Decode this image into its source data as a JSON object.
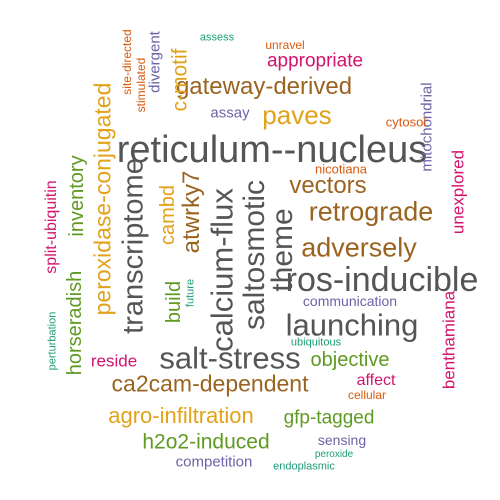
{
  "colors": {
    "gray": "#555555",
    "brown": "#9a6420",
    "gold": "#e2a21a",
    "green": "#5f9a22",
    "magenta": "#d4136f",
    "orange": "#d95a0e",
    "purple": "#6c63a6",
    "teal": "#1b9e77"
  },
  "words": [
    {
      "text": "reticulum--nucleus",
      "color": "gray"
    },
    {
      "text": "ros-inducible",
      "color": "gray"
    },
    {
      "text": "launching",
      "color": "gray"
    },
    {
      "text": "salt-stress",
      "color": "gray"
    },
    {
      "text": "calcium-flux",
      "color": "gray"
    },
    {
      "text": "saltosmotic",
      "color": "gray"
    },
    {
      "text": "theme",
      "color": "gray"
    },
    {
      "text": "transcriptome",
      "color": "gray"
    },
    {
      "text": "atwrky7",
      "color": "brown"
    },
    {
      "text": "retrograde",
      "color": "brown"
    },
    {
      "text": "adversely",
      "color": "brown"
    },
    {
      "text": "vectors",
      "color": "brown"
    },
    {
      "text": "ca2cam-dependent",
      "color": "brown"
    },
    {
      "text": "gateway-derived",
      "color": "brown"
    },
    {
      "text": "paves",
      "color": "gold"
    },
    {
      "text": "peroxidase-conjugated",
      "color": "gold"
    },
    {
      "text": "agro-infiltration",
      "color": "gold"
    },
    {
      "text": "c-motif",
      "color": "gold"
    },
    {
      "text": "cambd",
      "color": "gold"
    },
    {
      "text": "objective",
      "color": "green"
    },
    {
      "text": "gfp-tagged",
      "color": "green"
    },
    {
      "text": "h2o2-induced",
      "color": "green"
    },
    {
      "text": "build",
      "color": "green"
    },
    {
      "text": "inventory",
      "color": "green"
    },
    {
      "text": "horseradish",
      "color": "green"
    },
    {
      "text": "appropriate",
      "color": "magenta"
    },
    {
      "text": "unexplored",
      "color": "magenta"
    },
    {
      "text": "benthamiana",
      "color": "magenta"
    },
    {
      "text": "split-ubiquitin",
      "color": "magenta"
    },
    {
      "text": "reside",
      "color": "magenta"
    },
    {
      "text": "affect",
      "color": "magenta"
    },
    {
      "text": "communication",
      "color": "purple"
    },
    {
      "text": "mitochondrial",
      "color": "purple"
    },
    {
      "text": "competition",
      "color": "purple"
    },
    {
      "text": "sensing",
      "color": "purple"
    },
    {
      "text": "assay",
      "color": "purple"
    },
    {
      "text": "divergent",
      "color": "purple"
    },
    {
      "text": "cytosol",
      "color": "orange"
    },
    {
      "text": "nicotiana",
      "color": "orange"
    },
    {
      "text": "unravel",
      "color": "orange"
    },
    {
      "text": "cellular",
      "color": "orange"
    },
    {
      "text": "stimulated",
      "color": "orange"
    },
    {
      "text": "site-directed",
      "color": "orange"
    },
    {
      "text": "assess",
      "color": "teal"
    },
    {
      "text": "future",
      "color": "teal"
    },
    {
      "text": "ubiquitous",
      "color": "teal"
    },
    {
      "text": "perturbation",
      "color": "teal"
    },
    {
      "text": "endoplasmic",
      "color": "teal"
    },
    {
      "text": "peroxide",
      "color": "teal"
    }
  ]
}
